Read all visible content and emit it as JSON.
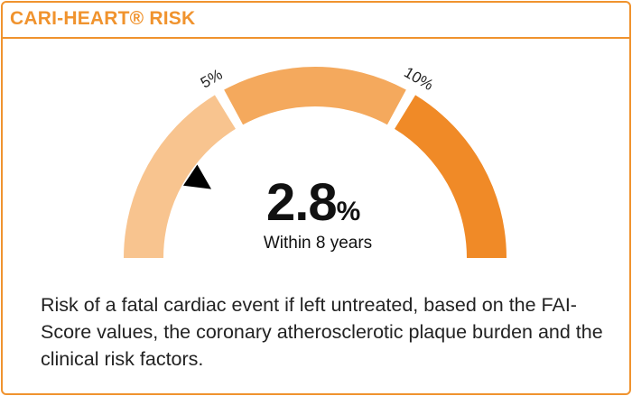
{
  "card": {
    "title": "CARI-HEART® RISK"
  },
  "gauge": {
    "value": 2.8,
    "value_text": "2.8",
    "unit": "%",
    "caption": "Within 8 years",
    "max": 15,
    "thresholds": [
      {
        "value": 5,
        "label": "5%"
      },
      {
        "value": 10,
        "label": "10%"
      }
    ],
    "segment_colors": [
      "#f8c48f",
      "#f4a95d",
      "#f08a27"
    ]
  },
  "description": "Risk of a fatal cardiac event if left untreated, based on the FAI-Score values, the coronary atherosclerotic plaque burden and the clinical risk factors."
}
